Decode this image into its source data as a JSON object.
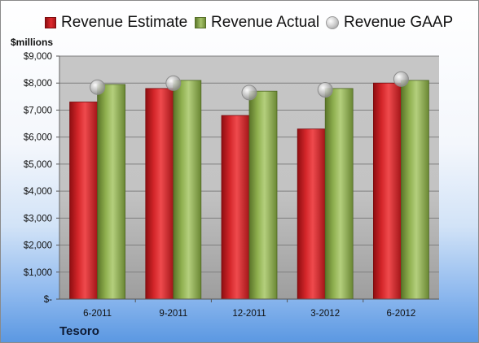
{
  "legend": {
    "estimate": "Revenue Estimate",
    "actual": "Revenue Actual",
    "gaap": "Revenue GAAP"
  },
  "unit_label": "$millions",
  "company": "Tesoro",
  "colors": {
    "estimate": "#c41e22",
    "actual": "#8fb04f",
    "gaap": "#bdbdbd"
  },
  "chart_data": {
    "type": "bar",
    "categories": [
      "6-2011",
      "9-2011",
      "12-2011",
      "3-2012",
      "6-2012"
    ],
    "series": [
      {
        "name": "Revenue Estimate",
        "type": "bar",
        "values": [
          7300,
          7800,
          6800,
          6300,
          8000
        ]
      },
      {
        "name": "Revenue Actual",
        "type": "bar",
        "values": [
          7950,
          8100,
          7700,
          7800,
          8100
        ]
      },
      {
        "name": "Revenue GAAP",
        "type": "marker",
        "values": [
          7850,
          8000,
          7650,
          7750,
          8150
        ]
      }
    ],
    "y_ticks": [
      "$-",
      "$1,000",
      "$2,000",
      "$3,000",
      "$4,000",
      "$5,000",
      "$6,000",
      "$7,000",
      "$8,000",
      "$9,000"
    ],
    "ylim": [
      0,
      9000
    ],
    "ylabel": "$millions",
    "grid": true,
    "legend_position": "top"
  }
}
